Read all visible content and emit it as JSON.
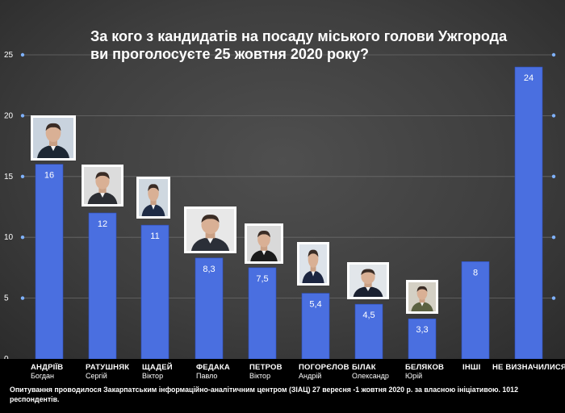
{
  "chart_data": {
    "type": "bar",
    "title_lines": [
      "За кого з кандидатів на посаду міського голови Ужгорода",
      "ви проголосуєте 25 жовтня 2020 року?"
    ],
    "categories": [
      {
        "surname": "АНДРІЇВ",
        "name": "Богдан",
        "value": 16,
        "label": "16"
      },
      {
        "surname": "РАТУШНЯК",
        "name": "Сергій",
        "value": 12,
        "label": "12"
      },
      {
        "surname": "ЩАДЕЙ",
        "name": "Віктор",
        "value": 11,
        "label": "11"
      },
      {
        "surname": "ФЕДАКА",
        "name": "Павло",
        "value": 8.3,
        "label": "8,3"
      },
      {
        "surname": "ПЕТРОВ",
        "name": "Віктор",
        "value": 7.5,
        "label": "7,5"
      },
      {
        "surname": "ПОГОРЄЛОВ",
        "name": "Андрій",
        "value": 5.4,
        "label": "5,4"
      },
      {
        "surname": "БІЛАК",
        "name": "Олександр",
        "value": 4.5,
        "label": "4,5"
      },
      {
        "surname": "БЕЛЯКОВ",
        "name": "Юрій",
        "value": 3.3,
        "label": "3,3"
      },
      {
        "surname": "ІНШІ",
        "name": "",
        "value": 8,
        "label": "8"
      },
      {
        "surname": "НЕ ВИЗНАЧИЛИСЯ",
        "name": "",
        "value": 24,
        "label": "24"
      }
    ],
    "y_ticks": [
      "0",
      "5",
      "10",
      "15",
      "20",
      "25"
    ],
    "ylim": [
      0,
      25
    ],
    "grid": true,
    "colors": {
      "bar": "#4a6fe0",
      "bar_edge": "#2d4fc0",
      "grid": "#6a6a6a",
      "tick": "#ffffff",
      "dot": "#7fb2ff"
    }
  },
  "footnote": "Опитування проводилося Закарпатським інформаційно-аналітичним центром (ЗІАЦ) 27 вересня -1 жовтня 2020 р. за  власною ініціативою. 1012 респондентів.",
  "photos": [
    {
      "icon": "candidate-photo-andriiv",
      "suit": "#1d2733",
      "bg": "#c9d3de"
    },
    {
      "icon": "candidate-photo-ratushniak",
      "suit": "#2c2e33",
      "bg": "#dcdcdc"
    },
    {
      "icon": "candidate-photo-shchadei",
      "suit": "#1e2b45",
      "bg": "#cfd8e0"
    },
    {
      "icon": "candidate-photo-fedaka",
      "suit": "#2b2f38",
      "bg": "#e8e8e8"
    },
    {
      "icon": "candidate-photo-petrov",
      "suit": "#1b1b1b",
      "bg": "#d9d9d9"
    },
    {
      "icon": "candidate-photo-pohorielov",
      "suit": "#1c2540",
      "bg": "#dde3ea"
    },
    {
      "icon": "candidate-photo-bilak",
      "suit": "#1a2030",
      "bg": "#e2e6ea"
    },
    {
      "icon": "candidate-photo-beliakov",
      "suit": "#5b6141",
      "bg": "#d4d0c4"
    }
  ]
}
